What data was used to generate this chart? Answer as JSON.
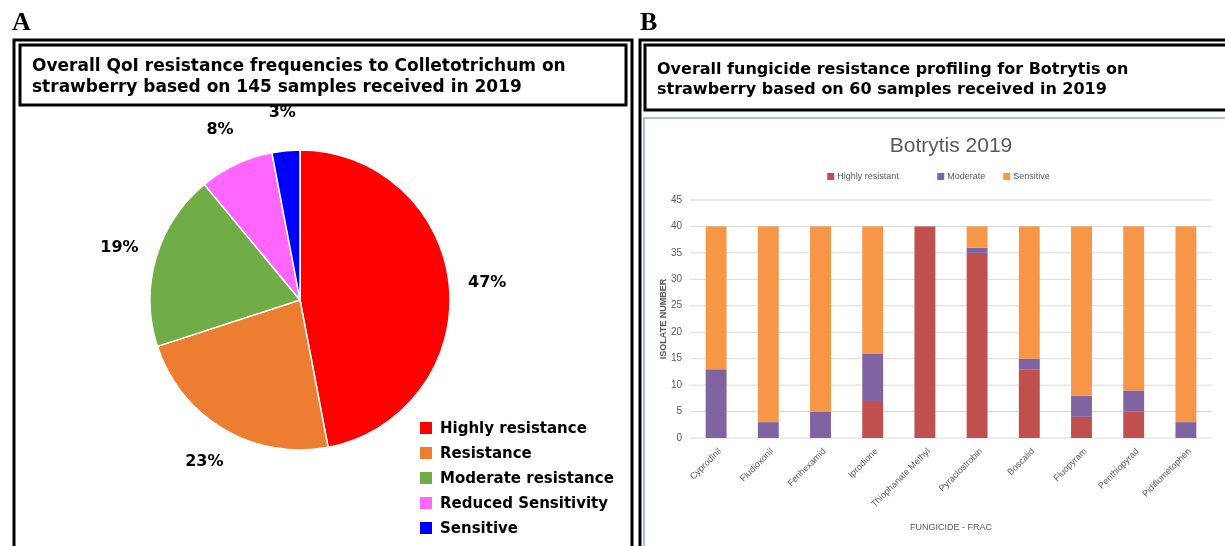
{
  "chart_data": [
    {
      "type": "pie",
      "title": "Overall QoI resistance frequencies to Colletotrichum on strawberry based on 145 samples received in 2019",
      "annotations": [
        "A"
      ],
      "categories": [
        "Highly resistance",
        "Resistance",
        "Moderate resistance",
        "Reduced Sensitivity",
        "Sensitive"
      ],
      "values": [
        47,
        23,
        19,
        8,
        3
      ],
      "colors": [
        "#ff0000",
        "#ed7d31",
        "#70ad47",
        "#ff66ff",
        "#0000ff"
      ],
      "value_labels": [
        "47%",
        "23%",
        "19%",
        "8%",
        "3%"
      ],
      "legend": "bottom right"
    },
    {
      "type": "bar",
      "title": "Overall fungicide resistance profiling for Botrytis on strawberry based on 60 samples received in 2019",
      "subtitle": "Botrytis 2019",
      "annotations": [
        "B"
      ],
      "xlabel": "FUNGICIDE - FRAC",
      "ylabel": "ISOLATE NUMBER",
      "stacked": true,
      "categories": [
        "Cyprodinil",
        "Fludioxonil",
        "Fenhexamid",
        "Iprodione",
        "Thiophanate Methyl",
        "Pyraclostrobin",
        "Boscalid",
        "Fluopyram",
        "Penthiopyrad",
        "Pidiflumetophen"
      ],
      "series": [
        {
          "name": "Highly resistant",
          "color": "#c0504d",
          "values": [
            0,
            0,
            0,
            7,
            40,
            35,
            13,
            4,
            5,
            0
          ]
        },
        {
          "name": "Moderate",
          "color": "#8064a2",
          "values": [
            13,
            3,
            5,
            9,
            0,
            1,
            2,
            4,
            4,
            3
          ]
        },
        {
          "name": "Sensitive",
          "color": "#f79646",
          "values": [
            27,
            37,
            35,
            24,
            0,
            4,
            25,
            32,
            31,
            37
          ]
        }
      ],
      "ylim": [
        0,
        45
      ],
      "yticks": [
        0,
        5,
        10,
        15,
        20,
        25,
        30,
        35,
        40,
        45
      ],
      "grid": "y",
      "legend": "top"
    }
  ]
}
